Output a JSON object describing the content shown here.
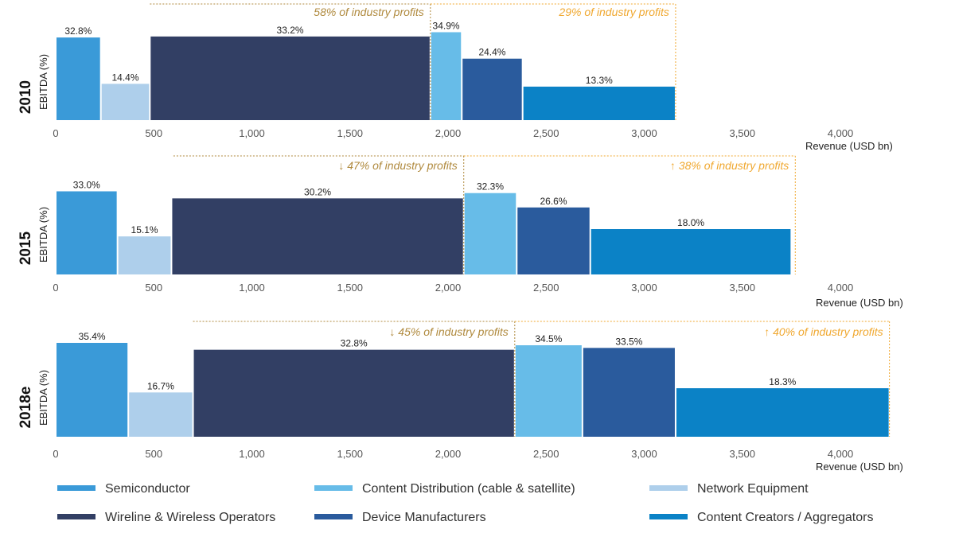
{
  "chart_data": {
    "type": "bar",
    "subtype": "variable-width (marimekko) bar chart",
    "ylabel": "EBITDA (%)",
    "xlabel": "Revenue (USD bn)",
    "x_ticks": [
      "0",
      "500",
      "1,000",
      "1,500",
      "2,000",
      "2,500",
      "3,000",
      "3,500",
      "4,000"
    ],
    "ylim": [
      0,
      36
    ],
    "colors": {
      "Semiconductor": "#3a9ad8",
      "Network Equipment": "#aecfeb",
      "Wireline & Wireless Operators": "#323f64",
      "Content Distribution (cable & satellite)": "#67bce8",
      "Device Manufacturers": "#2a5b9d",
      "Content Creators / Aggregators": "#0b82c6",
      "bracket_operators": "#b08a3e",
      "bracket_content": "#f0a830"
    },
    "legend": [
      "Semiconductor",
      "Content Distribution (cable & satellite)",
      "Network Equipment",
      "Wireline & Wireless Operators",
      "Device Manufacturers",
      "Content Creators / Aggregators"
    ],
    "panels": [
      {
        "year": "2010",
        "segments": [
          {
            "name": "Semiconductor",
            "revenue": 230,
            "ebitda": 32.8,
            "label": "32.8%"
          },
          {
            "name": "Network Equipment",
            "revenue": 250,
            "ebitda": 14.4,
            "label": "14.4%"
          },
          {
            "name": "Wireline & Wireless Operators",
            "revenue": 1430,
            "ebitda": 33.2,
            "label": "33.2%"
          },
          {
            "name": "Content Distribution (cable & satellite)",
            "revenue": 160,
            "ebitda": 34.9,
            "label": "34.9%"
          },
          {
            "name": "Device Manufacturers",
            "revenue": 310,
            "ebitda": 24.4,
            "label": "24.4%"
          },
          {
            "name": "Content Creators / Aggregators",
            "revenue": 780,
            "ebitda": 13.3,
            "label": "13.3%"
          }
        ],
        "brackets": [
          {
            "label": "58% of industry profits",
            "group": "operators",
            "arrow": "",
            "from": 480,
            "to": 1910
          },
          {
            "label": "29% of industry profits",
            "group": "content",
            "arrow": "",
            "from": 1910,
            "to": 3160
          }
        ]
      },
      {
        "year": "2015",
        "segments": [
          {
            "name": "Semiconductor",
            "revenue": 315,
            "ebitda": 33.0,
            "label": "33.0%"
          },
          {
            "name": "Network Equipment",
            "revenue": 275,
            "ebitda": 15.1,
            "label": "15.1%"
          },
          {
            "name": "Wireline & Wireless Operators",
            "revenue": 1490,
            "ebitda": 30.2,
            "label": "30.2%"
          },
          {
            "name": "Content Distribution (cable & satellite)",
            "revenue": 270,
            "ebitda": 32.3,
            "label": "32.3%"
          },
          {
            "name": "Device Manufacturers",
            "revenue": 375,
            "ebitda": 26.6,
            "label": "26.6%"
          },
          {
            "name": "Content Creators / Aggregators",
            "revenue": 1025,
            "ebitda": 18.0,
            "label": "18.0%"
          }
        ],
        "brackets": [
          {
            "label": "47% of industry profits",
            "group": "operators",
            "arrow": "down",
            "from": 600,
            "to": 2080
          },
          {
            "label": "38% of industry profits",
            "group": "content",
            "arrow": "up",
            "from": 2080,
            "to": 3770
          }
        ]
      },
      {
        "year": "2018e",
        "segments": [
          {
            "name": "Semiconductor",
            "revenue": 370,
            "ebitda": 35.4,
            "label": "35.4%"
          },
          {
            "name": "Network Equipment",
            "revenue": 330,
            "ebitda": 16.7,
            "label": "16.7%"
          },
          {
            "name": "Wireline & Wireless Operators",
            "revenue": 1640,
            "ebitda": 32.8,
            "label": "32.8%"
          },
          {
            "name": "Content Distribution (cable & satellite)",
            "revenue": 345,
            "ebitda": 34.5,
            "label": "34.5%"
          },
          {
            "name": "Device Manufacturers",
            "revenue": 475,
            "ebitda": 33.5,
            "label": "33.5%"
          },
          {
            "name": "Content Creators / Aggregators",
            "revenue": 1090,
            "ebitda": 18.3,
            "label": "18.3%"
          }
        ],
        "brackets": [
          {
            "label": "45% of industry profits",
            "group": "operators",
            "arrow": "down",
            "from": 700,
            "to": 2340
          },
          {
            "label": "40% of industry profits",
            "group": "content",
            "arrow": "up",
            "from": 2340,
            "to": 4250
          }
        ]
      }
    ]
  }
}
